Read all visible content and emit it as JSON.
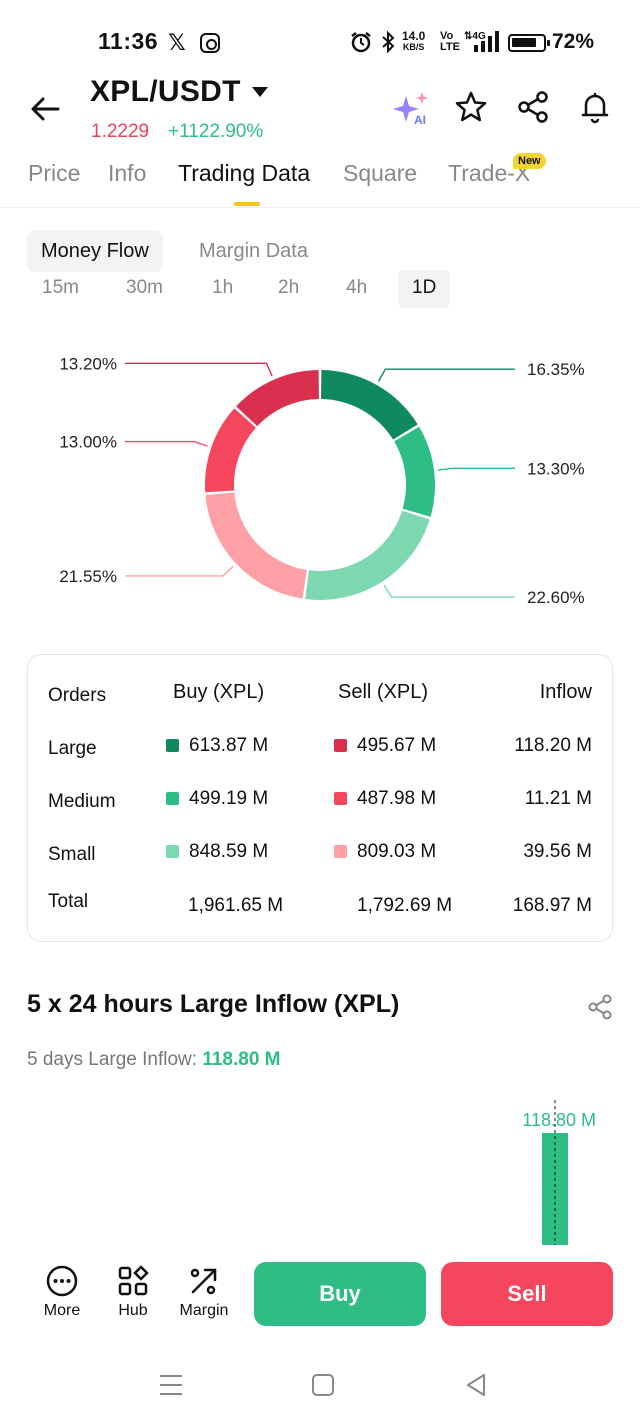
{
  "status_bar": {
    "time": "11:36",
    "net_speed_top": "14.0",
    "net_speed_bottom": "KB/S",
    "lte_top": "Vo",
    "lte_bottom": "LTE",
    "network": "4G",
    "battery": "72%"
  },
  "header": {
    "pair": "XPL/USDT",
    "price": "1.2229",
    "change": "+1122.90%"
  },
  "tabs": [
    {
      "label": "Price"
    },
    {
      "label": "Info"
    },
    {
      "label": "Trading Data"
    },
    {
      "label": "Square"
    },
    {
      "label": "Trade-X"
    }
  ],
  "new_badge": "New",
  "sub_tabs": [
    {
      "label": "Money Flow"
    },
    {
      "label": "Margin Data"
    }
  ],
  "intervals": [
    "15m",
    "30m",
    "1h",
    "2h",
    "4h",
    "1D"
  ],
  "chart_data": [
    {
      "type": "pie",
      "slices": [
        {
          "label": "16.35%",
          "value": 16.35,
          "color": "#0f8a5f"
        },
        {
          "label": "13.30%",
          "value": 13.3,
          "color": "#2dbd85"
        },
        {
          "label": "22.60%",
          "value": 22.6,
          "color": "#7dd8b2"
        },
        {
          "label": "21.55%",
          "value": 21.55,
          "color": "#ffa0a6"
        },
        {
          "label": "13.00%",
          "value": 13.0,
          "color": "#f6465d"
        },
        {
          "label": "13.20%",
          "value": 13.2,
          "color": "#d9304f"
        }
      ]
    },
    {
      "type": "bar",
      "categories": [
        ""
      ],
      "values": [
        118.8
      ],
      "data_labels": [
        "118.80 M"
      ]
    }
  ],
  "flow_table": {
    "headers": [
      "Orders",
      "Buy (XPL)",
      "Sell (XPL)",
      "Inflow"
    ],
    "rows": [
      {
        "order": "Large",
        "buy": "613.87 M",
        "sell": "495.67 M",
        "inflow": "118.20 M",
        "buy_color": "#0f8a5f",
        "sell_color": "#d9304f"
      },
      {
        "order": "Medium",
        "buy": "499.19 M",
        "sell": "487.98 M",
        "inflow": "11.21 M",
        "buy_color": "#2dbd85",
        "sell_color": "#f6465d"
      },
      {
        "order": "Small",
        "buy": "848.59 M",
        "sell": "809.03 M",
        "inflow": "39.56 M",
        "buy_color": "#7dd8b2",
        "sell_color": "#ffa0a6"
      }
    ],
    "total": {
      "label": "Total",
      "buy": "1,961.65 M",
      "sell": "1,792.69 M",
      "inflow": "168.97 M"
    }
  },
  "large_inflow": {
    "title": "5 x 24 hours Large Inflow (XPL)",
    "label": "5 days Large Inflow:",
    "value": "118.80 M"
  },
  "bottom_bar": {
    "more": "More",
    "hub": "Hub",
    "margin": "Margin",
    "buy": "Buy",
    "sell": "Sell"
  }
}
